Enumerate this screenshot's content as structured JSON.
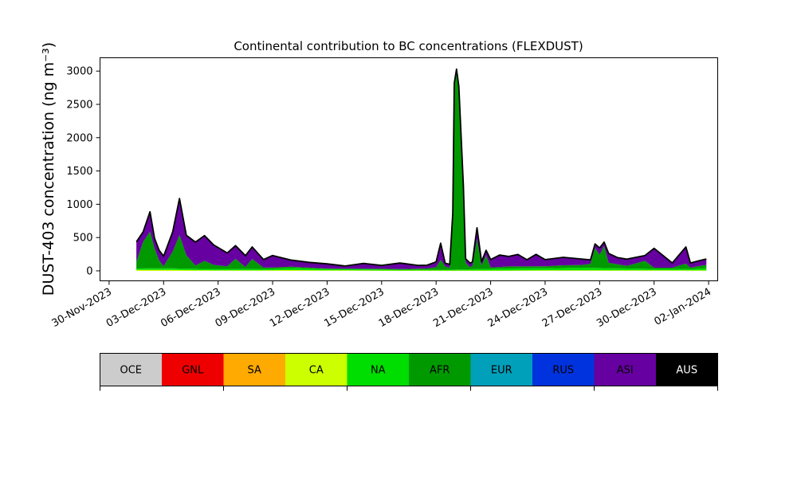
{
  "chart_data": {
    "type": "area",
    "stacked": true,
    "title": "Continental contribution to BC concentrations (FLEXDUST)",
    "ylabel": "DUST-403 concentration (ng m⁻³)",
    "xlabel": "",
    "ylim": [
      -150,
      3200
    ],
    "xlim": [
      "2023-11-29T12:00",
      "2024-01-02T12:00"
    ],
    "grid": false,
    "y_ticks": [
      0,
      500,
      1000,
      1500,
      2000,
      2500,
      3000
    ],
    "x_ticks": [
      {
        "date": "2023-11-30",
        "label": "30-Nov-2023"
      },
      {
        "date": "2023-12-03",
        "label": "03-Dec-2023"
      },
      {
        "date": "2023-12-06",
        "label": "06-Dec-2023"
      },
      {
        "date": "2023-12-09",
        "label": "09-Dec-2023"
      },
      {
        "date": "2023-12-12",
        "label": "12-Dec-2023"
      },
      {
        "date": "2023-12-15",
        "label": "15-Dec-2023"
      },
      {
        "date": "2023-12-18",
        "label": "18-Dec-2023"
      },
      {
        "date": "2023-12-21",
        "label": "21-Dec-2023"
      },
      {
        "date": "2023-12-24",
        "label": "24-Dec-2023"
      },
      {
        "date": "2023-12-27",
        "label": "27-Dec-2023"
      },
      {
        "date": "2023-12-30",
        "label": "30-Dec-2023"
      },
      {
        "date": "2024-01-02",
        "label": "02-Jan-2024"
      }
    ],
    "total_line_color": "#000000",
    "series": [
      {
        "name": "CA",
        "color": "#ccff00",
        "points": [
          [
            "2023-12-01T12:00",
            15
          ],
          [
            "2023-12-03T00:00",
            15
          ],
          [
            "2023-12-05T00:00",
            10
          ],
          [
            "2023-12-08T00:00",
            8
          ],
          [
            "2023-12-10T00:00",
            12
          ],
          [
            "2023-12-13T00:00",
            8
          ],
          [
            "2023-12-16T00:00",
            5
          ],
          [
            "2023-12-18T00:00",
            5
          ],
          [
            "2023-12-21T00:00",
            5
          ],
          [
            "2023-12-24T00:00",
            8
          ],
          [
            "2023-12-27T00:00",
            8
          ],
          [
            "2023-12-30T00:00",
            8
          ],
          [
            "2024-01-01T00:00",
            8
          ],
          [
            "2024-01-01T21:00",
            8
          ]
        ]
      },
      {
        "name": "NA",
        "color": "#00dd00",
        "points": [
          [
            "2023-12-01T12:00",
            20
          ],
          [
            "2023-12-03T00:00",
            25
          ],
          [
            "2023-12-05T00:00",
            20
          ],
          [
            "2023-12-07T00:00",
            20
          ],
          [
            "2023-12-09T00:00",
            20
          ],
          [
            "2023-12-10T00:00",
            30
          ],
          [
            "2023-12-12T00:00",
            15
          ],
          [
            "2023-12-15T00:00",
            15
          ],
          [
            "2023-12-17T00:00",
            10
          ],
          [
            "2023-12-18T12:00",
            10
          ],
          [
            "2023-12-20T00:00",
            20
          ],
          [
            "2023-12-22T00:00",
            30
          ],
          [
            "2023-12-24T00:00",
            30
          ],
          [
            "2023-12-26T00:00",
            40
          ],
          [
            "2023-12-28T00:00",
            30
          ],
          [
            "2023-12-30T00:00",
            20
          ],
          [
            "2024-01-01T00:00",
            20
          ],
          [
            "2024-01-01T21:00",
            30
          ]
        ]
      },
      {
        "name": "AFR",
        "color": "#009900",
        "points": [
          [
            "2023-12-01T12:00",
            100
          ],
          [
            "2023-12-01T21:00",
            400
          ],
          [
            "2023-12-02T06:00",
            550
          ],
          [
            "2023-12-02T12:00",
            300
          ],
          [
            "2023-12-02T18:00",
            120
          ],
          [
            "2023-12-03T00:00",
            30
          ],
          [
            "2023-12-03T12:00",
            250
          ],
          [
            "2023-12-03T21:00",
            500
          ],
          [
            "2023-12-04T06:00",
            200
          ],
          [
            "2023-12-04T18:00",
            50
          ],
          [
            "2023-12-05T06:00",
            120
          ],
          [
            "2023-12-05T18:00",
            60
          ],
          [
            "2023-12-06T12:00",
            40
          ],
          [
            "2023-12-06T23:00",
            150
          ],
          [
            "2023-12-07T12:00",
            30
          ],
          [
            "2023-12-07T21:00",
            150
          ],
          [
            "2023-12-08T12:00",
            20
          ],
          [
            "2023-12-10T00:00",
            20
          ],
          [
            "2023-12-12T00:00",
            10
          ],
          [
            "2023-12-14T00:00",
            10
          ],
          [
            "2023-12-16T00:00",
            10
          ],
          [
            "2023-12-17T12:00",
            20
          ],
          [
            "2023-12-18T00:00",
            40
          ],
          [
            "2023-12-18T06:00",
            150
          ],
          [
            "2023-12-18T12:00",
            50
          ],
          [
            "2023-12-18T18:00",
            30
          ],
          [
            "2023-12-18T22:00",
            800
          ],
          [
            "2023-12-19T00:00",
            2750
          ],
          [
            "2023-12-19T03:00",
            2950
          ],
          [
            "2023-12-19T06:00",
            2700
          ],
          [
            "2023-12-19T12:00",
            1200
          ],
          [
            "2023-12-19T15:00",
            100
          ],
          [
            "2023-12-19T21:00",
            30
          ],
          [
            "2023-12-20T00:00",
            50
          ],
          [
            "2023-12-20T06:00",
            450
          ],
          [
            "2023-12-20T12:00",
            50
          ],
          [
            "2023-12-20T18:00",
            200
          ],
          [
            "2023-12-21T00:00",
            20
          ],
          [
            "2023-12-22T00:00",
            30
          ],
          [
            "2023-12-23T00:00",
            30
          ],
          [
            "2023-12-24T00:00",
            30
          ],
          [
            "2023-12-25T00:00",
            40
          ],
          [
            "2023-12-26T00:00",
            40
          ],
          [
            "2023-12-26T12:00",
            60
          ],
          [
            "2023-12-26T18:00",
            300
          ],
          [
            "2023-12-27T00:00",
            200
          ],
          [
            "2023-12-27T06:00",
            330
          ],
          [
            "2023-12-27T12:00",
            80
          ],
          [
            "2023-12-28T00:00",
            60
          ],
          [
            "2023-12-28T12:00",
            40
          ],
          [
            "2023-12-29T12:00",
            120
          ],
          [
            "2023-12-30T00:00",
            20
          ],
          [
            "2023-12-31T00:00",
            20
          ],
          [
            "2023-12-31T18:00",
            80
          ],
          [
            "2024-01-01T00:00",
            20
          ],
          [
            "2024-01-01T12:00",
            40
          ],
          [
            "2024-01-01T21:00",
            50
          ]
        ]
      },
      {
        "name": "ASI",
        "color": "#6600a0",
        "points": [
          [
            "2023-12-01T12:00",
            300
          ],
          [
            "2023-12-01T21:00",
            150
          ],
          [
            "2023-12-02T06:00",
            300
          ],
          [
            "2023-12-02T12:00",
            150
          ],
          [
            "2023-12-02T18:00",
            150
          ],
          [
            "2023-12-03T00:00",
            150
          ],
          [
            "2023-12-03T12:00",
            300
          ],
          [
            "2023-12-03T21:00",
            550
          ],
          [
            "2023-12-04T06:00",
            300
          ],
          [
            "2023-12-04T18:00",
            350
          ],
          [
            "2023-12-05T06:00",
            380
          ],
          [
            "2023-12-05T18:00",
            300
          ],
          [
            "2023-12-06T12:00",
            200
          ],
          [
            "2023-12-06T23:00",
            200
          ],
          [
            "2023-12-07T12:00",
            170
          ],
          [
            "2023-12-07T21:00",
            180
          ],
          [
            "2023-12-08T12:00",
            120
          ],
          [
            "2023-12-09T00:00",
            180
          ],
          [
            "2023-12-10T00:00",
            100
          ],
          [
            "2023-12-11T00:00",
            80
          ],
          [
            "2023-12-12T00:00",
            70
          ],
          [
            "2023-12-13T00:00",
            40
          ],
          [
            "2023-12-14T00:00",
            80
          ],
          [
            "2023-12-15T00:00",
            50
          ],
          [
            "2023-12-16T00:00",
            90
          ],
          [
            "2023-12-17T00:00",
            50
          ],
          [
            "2023-12-17T12:00",
            50
          ],
          [
            "2023-12-18T00:00",
            80
          ],
          [
            "2023-12-18T06:00",
            250
          ],
          [
            "2023-12-18T12:00",
            50
          ],
          [
            "2023-12-18T18:00",
            50
          ],
          [
            "2023-12-18T22:00",
            50
          ],
          [
            "2023-12-19T00:00",
            50
          ],
          [
            "2023-12-19T03:00",
            60
          ],
          [
            "2023-12-19T06:00",
            50
          ],
          [
            "2023-12-19T12:00",
            60
          ],
          [
            "2023-12-19T15:00",
            60
          ],
          [
            "2023-12-19T21:00",
            60
          ],
          [
            "2023-12-20T00:00",
            60
          ],
          [
            "2023-12-20T06:00",
            170
          ],
          [
            "2023-12-20T12:00",
            60
          ],
          [
            "2023-12-20T18:00",
            80
          ],
          [
            "2023-12-21T00:00",
            120
          ],
          [
            "2023-12-21T12:00",
            180
          ],
          [
            "2023-12-22T00:00",
            150
          ],
          [
            "2023-12-22T12:00",
            180
          ],
          [
            "2023-12-23T00:00",
            100
          ],
          [
            "2023-12-23T12:00",
            180
          ],
          [
            "2023-12-24T00:00",
            100
          ],
          [
            "2023-12-25T00:00",
            120
          ],
          [
            "2023-12-26T00:00",
            90
          ],
          [
            "2023-12-26T12:00",
            60
          ],
          [
            "2023-12-26T18:00",
            60
          ],
          [
            "2023-12-27T00:00",
            100
          ],
          [
            "2023-12-27T06:00",
            60
          ],
          [
            "2023-12-27T12:00",
            140
          ],
          [
            "2023-12-28T00:00",
            100
          ],
          [
            "2023-12-28T12:00",
            100
          ],
          [
            "2023-12-29T12:00",
            80
          ],
          [
            "2023-12-30T00:00",
            290
          ],
          [
            "2023-12-31T00:00",
            70
          ],
          [
            "2023-12-31T18:00",
            250
          ],
          [
            "2024-01-01T00:00",
            70
          ],
          [
            "2024-01-01T12:00",
            80
          ],
          [
            "2024-01-01T21:00",
            90
          ]
        ]
      }
    ]
  },
  "legend": {
    "labels": [
      "OCE",
      "GNL",
      "SA",
      "CA",
      "NA",
      "AFR",
      "EUR",
      "RUS",
      "ASI",
      "AUS"
    ],
    "colors": [
      "#cccccc",
      "#ee0000",
      "#ffaa00",
      "#ccff00",
      "#00dd00",
      "#009900",
      "#00a0bb",
      "#0033dd",
      "#6600a0",
      "#000000"
    ],
    "text_colors": [
      "#000000",
      "#000000",
      "#000000",
      "#000000",
      "#000000",
      "#000000",
      "#000000",
      "#000000",
      "#000000",
      "#ffffff"
    ]
  }
}
